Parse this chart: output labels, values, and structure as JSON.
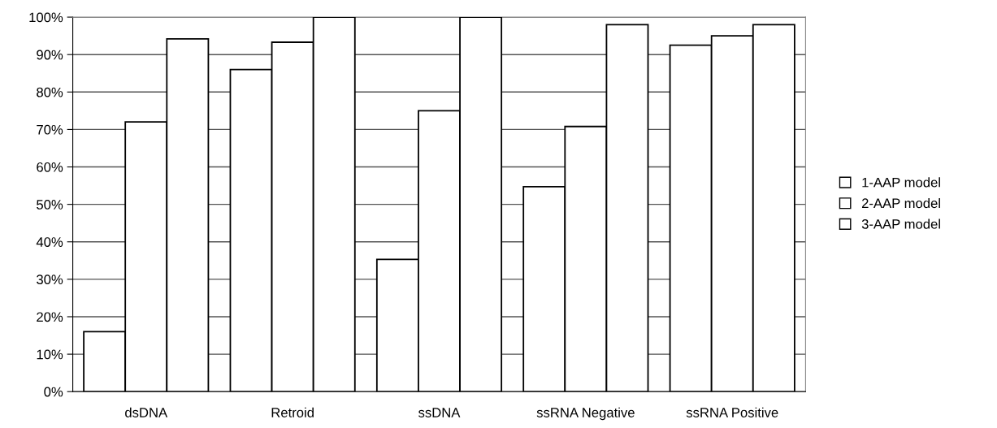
{
  "chart_data": {
    "type": "bar",
    "categories": [
      "dsDNA",
      "Retroid",
      "ssDNA",
      "ssRNA Negative",
      "ssRNA Positive"
    ],
    "series": [
      {
        "name": "1-AAP model",
        "color": "#ffffff",
        "values": [
          16,
          86,
          35.3,
          54.7,
          92.5
        ]
      },
      {
        "name": "2-AAP model",
        "color": "#ffffff",
        "values": [
          72,
          93.3,
          75,
          70.8,
          95
        ]
      },
      {
        "name": "3-AAP model",
        "color": "#ffffff",
        "values": [
          94.2,
          100,
          100,
          98,
          98
        ]
      }
    ],
    "ylim": [
      0,
      100
    ],
    "yticks": [
      {
        "value": 0,
        "label": "0%"
      },
      {
        "value": 10,
        "label": "10%"
      },
      {
        "value": 20,
        "label": "20%"
      },
      {
        "value": 30,
        "label": "30%"
      },
      {
        "value": 40,
        "label": "40%"
      },
      {
        "value": 50,
        "label": "50%"
      },
      {
        "value": 60,
        "label": "60%"
      },
      {
        "value": 70,
        "label": "70%"
      },
      {
        "value": 80,
        "label": "80%"
      },
      {
        "value": 90,
        "label": "90%"
      },
      {
        "value": 100,
        "label": "100%"
      }
    ],
    "grid": "y",
    "legend": "right"
  }
}
